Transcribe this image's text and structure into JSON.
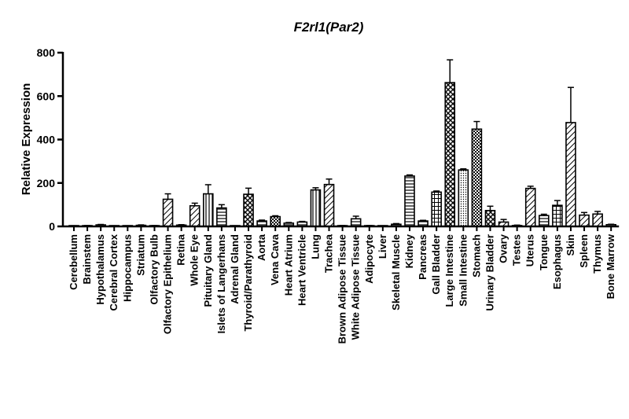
{
  "chart_data": {
    "type": "bar",
    "title": "F2rl1(Par2)",
    "xlabel": "",
    "ylabel": "Relative Expression",
    "ylim": [
      0,
      800
    ],
    "yticks": [
      0,
      200,
      400,
      600,
      800
    ],
    "error_bars": true,
    "categories": [
      "Cerebellum",
      "Brainstem",
      "Hypothalamus",
      "Cerebral Cortex",
      "Hippocampus",
      "Striatum",
      "Olfactory Bulb",
      "Olfactory Epithelium",
      "Retina",
      "Whole Eye",
      "Pituitary Gland",
      "Islets of Langerhans",
      "Adrenal Gland",
      "Thyroid/Parathyroid",
      "Aorta",
      "Vena Cava",
      "Heart Atrium",
      "Heart Ventricle",
      "Lung",
      "Trachea",
      "Brown Adipose Tissue",
      "White Adipose Tissue",
      "Adipocyte",
      "Liver",
      "Skeletal Muscle",
      "Kidney",
      "Pancreas",
      "Gall Bladder",
      "Large Intestine",
      "Small Intestine",
      "Stomach",
      "Urinary Bladder",
      "Ovary",
      "Testes",
      "Uterus",
      "Tongue",
      "Esophagus",
      "Skin",
      "Spleen",
      "Thymus",
      "Bone Marrow"
    ],
    "values": [
      2,
      3,
      7,
      2,
      2,
      5,
      3,
      125,
      6,
      95,
      150,
      85,
      2,
      148,
      25,
      45,
      15,
      20,
      168,
      193,
      3,
      35,
      3,
      2,
      10,
      232,
      25,
      158,
      662,
      260,
      448,
      73,
      20,
      4,
      175,
      50,
      97,
      478,
      52,
      57,
      8
    ],
    "errors": [
      1,
      1,
      2,
      1,
      1,
      2,
      1,
      25,
      2,
      12,
      42,
      15,
      1,
      28,
      4,
      4,
      3,
      3,
      10,
      25,
      1,
      12,
      1,
      1,
      3,
      5,
      3,
      5,
      105,
      5,
      35,
      20,
      12,
      2,
      10,
      6,
      22,
      162,
      12,
      12,
      2
    ],
    "patterns": [
      "hstripe",
      "hstripe",
      "hstripe",
      "hstripe",
      "hstripe",
      "hstripe",
      "hstripe",
      "diag",
      "hstripe",
      "diag",
      "vstripe",
      "hstripe",
      "hstripe",
      "cross",
      "hstripe",
      "checker",
      "hstripe",
      "hstripe",
      "vstripe",
      "diag",
      "hstripe",
      "hstripe",
      "hstripe",
      "hstripe",
      "hstripe",
      "hstripe",
      "hstripe",
      "grid",
      "cross",
      "dots",
      "checker",
      "cross",
      "diag",
      "hstripe",
      "diag",
      "hstripe",
      "grid",
      "diag",
      "diag",
      "diag",
      "hstripe"
    ]
  }
}
